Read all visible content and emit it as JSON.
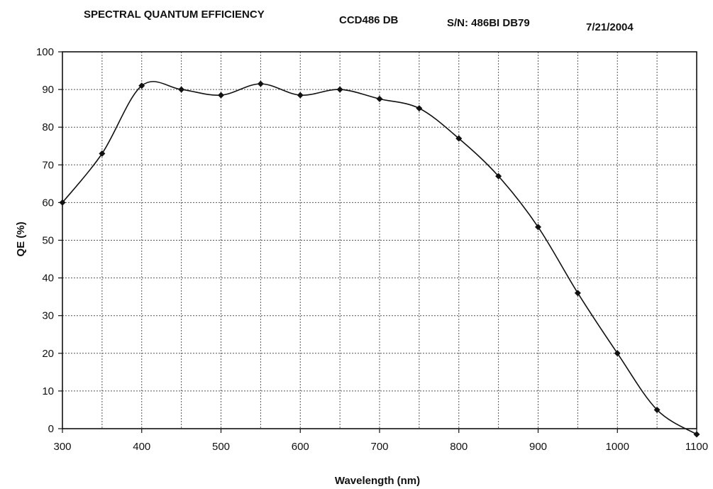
{
  "header": {
    "title": "SPECTRAL QUANTUM EFFICIENCY",
    "model": "CCD486 DB",
    "serial": "S/N:  486BI DB79",
    "date": "7/21/2004"
  },
  "chart_data": {
    "type": "line",
    "title": "SPECTRAL QUANTUM EFFICIENCY",
    "xlabel": "Wavelength (nm)",
    "ylabel": "QE (%)",
    "xlim": [
      300,
      1100
    ],
    "ylim": [
      0,
      100
    ],
    "grid": true,
    "x_ticks": [
      300,
      400,
      500,
      600,
      700,
      800,
      900,
      1000,
      1100
    ],
    "y_ticks": [
      0,
      10,
      20,
      30,
      40,
      50,
      60,
      70,
      80,
      90,
      100
    ],
    "x_minor_step": 50,
    "series": [
      {
        "name": "QE",
        "x": [
          300,
          350,
          400,
          450,
          500,
          550,
          600,
          650,
          700,
          750,
          800,
          850,
          900,
          950,
          1000,
          1050,
          1100
        ],
        "values": [
          60,
          73,
          91,
          90,
          88.5,
          91.5,
          88.5,
          90,
          87.5,
          85,
          77,
          67,
          53.5,
          36,
          20,
          5,
          -1.5
        ]
      }
    ]
  }
}
